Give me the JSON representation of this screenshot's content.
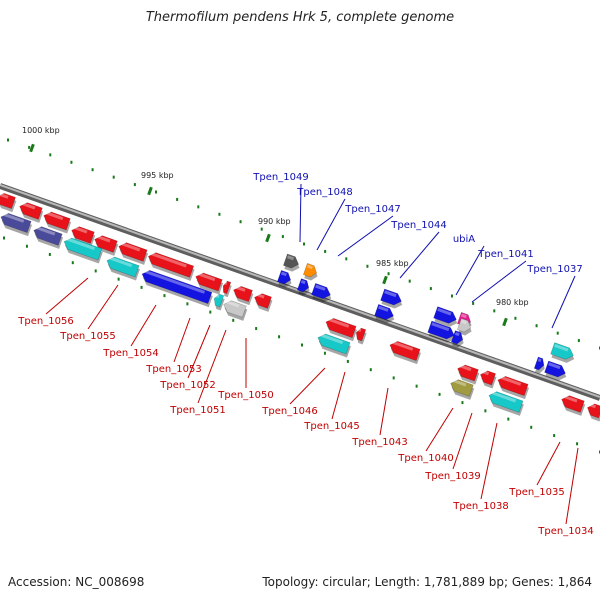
{
  "title": "Thermofilum pendens Hrk 5, complete genome",
  "footer": {
    "accession": "Accession: NC_008698",
    "summary": "Topology: circular; Length: 1,781,889 bp; Genes: 1,864"
  },
  "scale_labels": [
    "1000 kbp",
    "995 kbp",
    "990 kbp",
    "985 kbp",
    "980 kbp"
  ],
  "colors": {
    "backbone": "#7a7a7a",
    "forward_label": "#1010b0",
    "reverse_label": "#c00000",
    "red": "#e8121a",
    "blue": "#1414e0",
    "cyan": "#16c8c8",
    "purple": "#4a4a9a",
    "grey": "#c8c8c8",
    "darkgrey": "#555555",
    "orange": "#ff8c00",
    "magenta": "#e0208c",
    "olive": "#a09a40",
    "tick": "#1a7a1a"
  },
  "forward_genes": [
    "Tpen_1049",
    "Tpen_1048",
    "Tpen_1047",
    "Tpen_1044",
    "ubiA",
    "Tpen_1041",
    "Tpen_1037"
  ],
  "reverse_genes": [
    "Tpen_1056",
    "Tpen_1055",
    "Tpen_1054",
    "Tpen_1053",
    "Tpen_1052",
    "Tpen_1051",
    "Tpen_1050",
    "Tpen_1046",
    "Tpen_1045",
    "Tpen_1043",
    "Tpen_1040",
    "Tpen_1039",
    "Tpen_1038",
    "Tpen_1035",
    "Tpen_1034"
  ]
}
